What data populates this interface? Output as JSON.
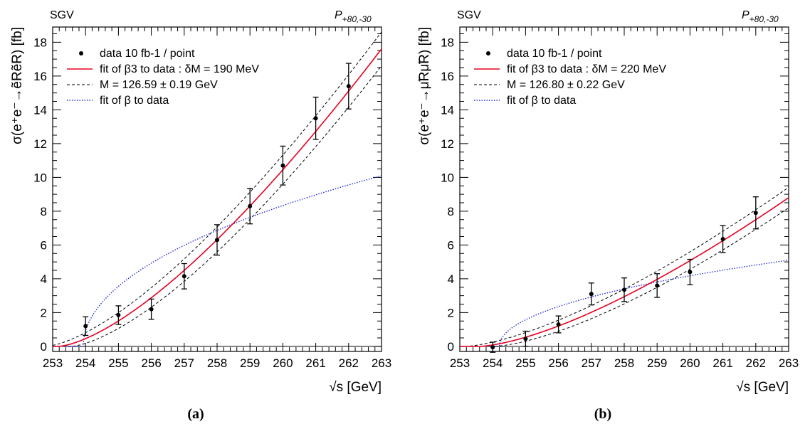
{
  "chart_data": [
    {
      "type": "scatter",
      "panel_label": "(a)",
      "corner_left": "SGV",
      "corner_right": "P",
      "corner_right_sub": "+80,-30",
      "ylabel": "σ(e⁺e⁻→ẽRẽR) [fb]",
      "xlabel": "√s [GeV]",
      "xlim": [
        253,
        263
      ],
      "ylim": [
        -0.3,
        18.9
      ],
      "xticks": [
        "253",
        "254",
        "255",
        "256",
        "257",
        "258",
        "259",
        "260",
        "261",
        "262",
        "263"
      ],
      "yticks": [
        "0",
        "2",
        "4",
        "6",
        "8",
        "10",
        "12",
        "14",
        "16",
        "18"
      ],
      "legend": [
        {
          "text": "data 10 fb-1 / point",
          "style": "marker"
        },
        {
          "text": "fit of β3 to data : δM = 190 MeV",
          "style": "red-solid"
        },
        {
          "text": "M = 126.59 ± 0.19 GeV",
          "style": "black-dashed"
        },
        {
          "text": "fit of β to data",
          "style": "blue-dotted"
        }
      ],
      "data": {
        "x": [
          254,
          255,
          256,
          257,
          258,
          259,
          260,
          261,
          262
        ],
        "y": [
          1.2,
          1.85,
          2.2,
          4.15,
          6.3,
          8.3,
          10.7,
          13.5,
          15.4
        ],
        "err": [
          0.55,
          0.55,
          0.6,
          0.75,
          0.9,
          1.05,
          1.15,
          1.25,
          1.35
        ]
      },
      "fits": {
        "threshold": 253.18,
        "norm": 17.6,
        "dash_shift": 0.38,
        "beta_threshold": 253.93,
        "beta_norm": 10.1
      }
    },
    {
      "type": "scatter",
      "panel_label": "(b)",
      "corner_left": "SGV",
      "corner_right": "P",
      "corner_right_sub": "+80,-30",
      "ylabel": "σ(e⁺e⁻→μ̃Rμ̃R) [fb]",
      "xlabel": "√s [GeV]",
      "xlim": [
        253,
        263
      ],
      "ylim": [
        -0.3,
        18.9
      ],
      "xticks": [
        "253",
        "254",
        "255",
        "256",
        "257",
        "258",
        "259",
        "260",
        "261",
        "262",
        "263"
      ],
      "yticks": [
        "0",
        "2",
        "4",
        "6",
        "8",
        "10",
        "12",
        "14",
        "16",
        "18"
      ],
      "legend": [
        {
          "text": "data 10 fb-1 / point",
          "style": "marker"
        },
        {
          "text": "fit of β3 to data : δM = 220 MeV",
          "style": "red-solid"
        },
        {
          "text": "M = 126.80 ± 0.22 GeV",
          "style": "black-dashed"
        },
        {
          "text": "fit of β to data",
          "style": "blue-dotted"
        }
      ],
      "data": {
        "x": [
          254,
          255,
          256,
          257,
          258,
          259,
          260,
          261,
          262
        ],
        "y": [
          -0.05,
          0.45,
          1.3,
          3.1,
          3.35,
          3.6,
          4.4,
          6.35,
          7.9
        ],
        "err": [
          0.3,
          0.45,
          0.5,
          0.65,
          0.7,
          0.7,
          0.75,
          0.8,
          0.95
        ]
      },
      "fits": {
        "threshold": 253.6,
        "norm": 8.8,
        "dash_shift": 0.44,
        "beta_threshold": 254.2,
        "beta_norm": 5.1
      }
    }
  ],
  "colors": {
    "fit_red": "#e8001e",
    "fit_blue": "#1f2bd6",
    "axis": "#000000"
  }
}
